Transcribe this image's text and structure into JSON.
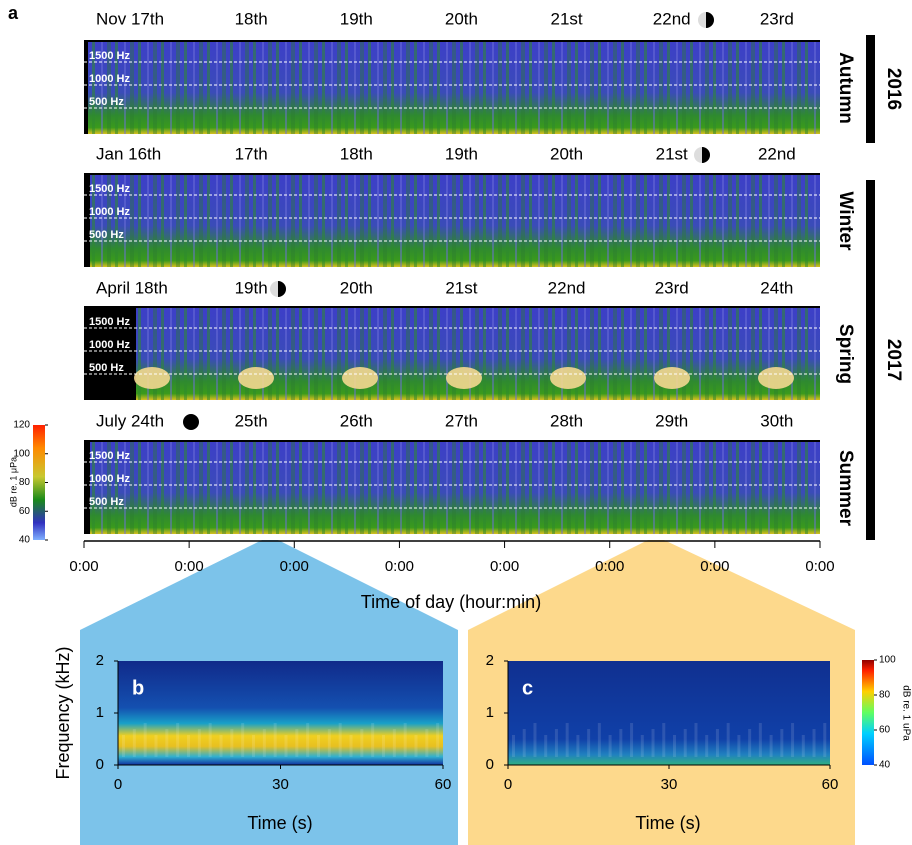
{
  "panel_a": {
    "label": "a",
    "rows": [
      {
        "dates": [
          "Nov 17th",
          "18th",
          "19th",
          "20th",
          "21st",
          "22nd",
          "23rd"
        ],
        "season": "Autumn"
      },
      {
        "dates": [
          "Jan 16th",
          "17th",
          "18th",
          "19th",
          "20th",
          "21st",
          "22nd"
        ],
        "season": "Winter"
      },
      {
        "dates": [
          "April 18th",
          "19th",
          "20th",
          "21st",
          "22nd",
          "23rd",
          "24th"
        ],
        "season": "Spring"
      },
      {
        "dates": [
          "July 24th",
          "25th",
          "26th",
          "27th",
          "28th",
          "29th",
          "30th"
        ],
        "season": "Summer"
      }
    ],
    "freq_labels": [
      "1500 Hz",
      "1000 Hz",
      "500 Hz"
    ],
    "years": [
      "2016",
      "2017"
    ],
    "time_ticks": [
      "0:00",
      "0:00",
      "0:00",
      "0:00",
      "0:00",
      "0:00",
      "0:00",
      "0:00"
    ],
    "xlabel": "Time of day (hour:min)",
    "colorbar": {
      "label": "dB re. 1 μPa",
      "lim": [
        40,
        120
      ],
      "ticks": [
        40,
        60,
        80,
        100,
        120
      ]
    }
  },
  "panel_b": {
    "label": "b",
    "ylabel": "Frequency (kHz)",
    "xlabel": "Time (s)",
    "xlim": [
      0,
      60
    ],
    "xticks": [
      0,
      30,
      60
    ],
    "ylim": [
      0,
      2
    ],
    "yticks": [
      0,
      1,
      2
    ]
  },
  "panel_c": {
    "label": "c",
    "xlabel": "Time (s)",
    "xlim": [
      0,
      60
    ],
    "xticks": [
      0,
      30,
      60
    ],
    "ylim": [
      0,
      2
    ],
    "yticks": [
      0,
      1,
      2
    ]
  },
  "colorbar_c": {
    "label": "dB re. 1 uPa",
    "lim": [
      40,
      100
    ],
    "ticks": [
      40,
      60,
      80,
      100
    ]
  }
}
